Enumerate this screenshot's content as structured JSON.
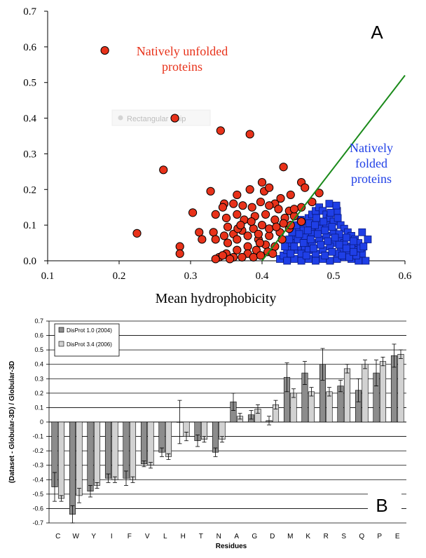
{
  "colors": {
    "red": "#e8321a",
    "blue": "#1f3fe6",
    "green": "#1a8a1a",
    "bar_dark": "#8c8c8c",
    "bar_light": "#d2d2d2"
  },
  "chart_data": [
    {
      "type": "scatter",
      "panel": "A",
      "xlabel": "Mean hydrophobicity",
      "ylabel": "",
      "xlim": [
        0.1,
        0.6
      ],
      "ylim": [
        0.0,
        0.7
      ],
      "xticks": [
        "0.1",
        "0.2",
        "0.3",
        "0.4",
        "0.5",
        "0.6"
      ],
      "yticks": [
        "0.0",
        "0.1",
        "0.2",
        "0.3",
        "0.4",
        "0.5",
        "0.6",
        "0.7"
      ],
      "annotations": {
        "unfolded_line1": "Natively unfolded",
        "unfolded_line2": "proteins",
        "folded_line1": "Natively",
        "folded_line2": "folded",
        "folded_line3": "proteins",
        "watermark": "Rectangular Snip"
      },
      "boundary_line": {
        "x1": 0.4,
        "y1": 0.0,
        "x2": 0.6,
        "y2": 0.52
      },
      "series": [
        {
          "name": "Natively unfolded proteins",
          "marker": "circle",
          "points": [
            [
              0.18,
              0.59
            ],
            [
              0.278,
              0.4
            ],
            [
              0.342,
              0.365
            ],
            [
              0.383,
              0.355
            ],
            [
              0.262,
              0.255
            ],
            [
              0.43,
              0.263
            ],
            [
              0.225,
              0.077
            ],
            [
              0.285,
              0.04
            ],
            [
              0.285,
              0.02
            ],
            [
              0.312,
              0.08
            ],
            [
              0.316,
              0.06
            ],
            [
              0.303,
              0.135
            ],
            [
              0.328,
              0.195
            ],
            [
              0.347,
              0.16
            ],
            [
              0.365,
              0.185
            ],
            [
              0.383,
              0.2
            ],
            [
              0.4,
              0.22
            ],
            [
              0.403,
              0.195
            ],
            [
              0.41,
              0.205
            ],
            [
              0.418,
              0.16
            ],
            [
              0.426,
              0.175
            ],
            [
              0.44,
              0.185
            ],
            [
              0.455,
              0.22
            ],
            [
              0.46,
              0.205
            ],
            [
              0.48,
              0.19
            ],
            [
              0.47,
              0.165
            ],
            [
              0.455,
              0.15
            ],
            [
              0.438,
              0.14
            ],
            [
              0.423,
              0.145
            ],
            [
              0.41,
              0.155
            ],
            [
              0.398,
              0.165
            ],
            [
              0.386,
              0.15
            ],
            [
              0.373,
              0.155
            ],
            [
              0.36,
              0.16
            ],
            [
              0.345,
              0.15
            ],
            [
              0.335,
              0.13
            ],
            [
              0.35,
              0.12
            ],
            [
              0.365,
              0.13
            ],
            [
              0.375,
              0.115
            ],
            [
              0.39,
              0.125
            ],
            [
              0.405,
              0.13
            ],
            [
              0.418,
              0.115
            ],
            [
              0.432,
              0.12
            ],
            [
              0.445,
              0.125
            ],
            [
              0.455,
              0.11
            ],
            [
              0.4,
              0.1
            ],
            [
              0.388,
              0.09
            ],
            [
              0.372,
              0.085
            ],
            [
              0.36,
              0.075
            ],
            [
              0.347,
              0.07
            ],
            [
              0.332,
              0.08
            ],
            [
              0.335,
              0.06
            ],
            [
              0.352,
              0.05
            ],
            [
              0.365,
              0.06
            ],
            [
              0.38,
              0.04
            ],
            [
              0.395,
              0.06
            ],
            [
              0.41,
              0.07
            ],
            [
              0.425,
              0.08
            ],
            [
              0.438,
              0.09
            ],
            [
              0.405,
              0.045
            ],
            [
              0.392,
              0.03
            ],
            [
              0.38,
              0.02
            ],
            [
              0.365,
              0.03
            ],
            [
              0.35,
              0.02
            ],
            [
              0.34,
              0.01
            ],
            [
              0.345,
              0.015
            ],
            [
              0.36,
              0.01
            ],
            [
              0.372,
              0.01
            ],
            [
              0.388,
              0.01
            ],
            [
              0.398,
              0.015
            ],
            [
              0.408,
              0.025
            ],
            [
              0.418,
              0.04
            ],
            [
              0.428,
              0.06
            ],
            [
              0.395,
              0.075
            ],
            [
              0.41,
              0.09
            ],
            [
              0.38,
              0.07
            ],
            [
              0.366,
              0.09
            ],
            [
              0.352,
              0.095
            ],
            [
              0.42,
              0.095
            ],
            [
              0.44,
              0.1
            ],
            [
              0.37,
              0.1
            ],
            [
              0.385,
              0.11
            ],
            [
              0.397,
              0.05
            ],
            [
              0.415,
              0.02
            ],
            [
              0.355,
              0.005
            ],
            [
              0.43,
              0.105
            ],
            [
              0.445,
              0.145
            ],
            [
              0.335,
              0.005
            ]
          ]
        },
        {
          "name": "Natively folded proteins",
          "marker": "square",
          "points": [
            [
              0.425,
              0.005
            ],
            [
              0.43,
              0.015
            ],
            [
              0.435,
              0.03
            ],
            [
              0.44,
              0.05
            ],
            [
              0.445,
              0.07
            ],
            [
              0.45,
              0.09
            ],
            [
              0.455,
              0.1
            ],
            [
              0.46,
              0.11
            ],
            [
              0.465,
              0.12
            ],
            [
              0.47,
              0.13
            ],
            [
              0.475,
              0.14
            ],
            [
              0.48,
              0.15
            ],
            [
              0.485,
              0.14
            ],
            [
              0.49,
              0.13
            ],
            [
              0.495,
              0.12
            ],
            [
              0.5,
              0.11
            ],
            [
              0.505,
              0.14
            ],
            [
              0.51,
              0.1
            ],
            [
              0.515,
              0.09
            ],
            [
              0.52,
              0.08
            ],
            [
              0.525,
              0.07
            ],
            [
              0.53,
              0.06
            ],
            [
              0.535,
              0.05
            ],
            [
              0.54,
              0.08
            ],
            [
              0.548,
              0.06
            ],
            [
              0.545,
              0.0
            ],
            [
              0.535,
              0.0
            ],
            [
              0.525,
              0.005
            ],
            [
              0.515,
              0.01
            ],
            [
              0.505,
              0.005
            ],
            [
              0.495,
              0.0
            ],
            [
              0.485,
              0.005
            ],
            [
              0.475,
              0.0
            ],
            [
              0.465,
              0.005
            ],
            [
              0.455,
              0.0
            ],
            [
              0.445,
              0.005
            ],
            [
              0.435,
              0.0
            ],
            [
              0.44,
              0.02
            ],
            [
              0.45,
              0.03
            ],
            [
              0.46,
              0.04
            ],
            [
              0.47,
              0.05
            ],
            [
              0.48,
              0.06
            ],
            [
              0.49,
              0.07
            ],
            [
              0.5,
              0.08
            ],
            [
              0.51,
              0.06
            ],
            [
              0.52,
              0.04
            ],
            [
              0.53,
              0.03
            ],
            [
              0.54,
              0.02
            ],
            [
              0.45,
              0.06
            ],
            [
              0.46,
              0.07
            ],
            [
              0.47,
              0.08
            ],
            [
              0.48,
              0.09
            ],
            [
              0.49,
              0.1
            ],
            [
              0.5,
              0.05
            ],
            [
              0.51,
              0.03
            ],
            [
              0.52,
              0.02
            ],
            [
              0.455,
              0.02
            ],
            [
              0.465,
              0.03
            ],
            [
              0.475,
              0.02
            ],
            [
              0.485,
              0.03
            ],
            [
              0.495,
              0.04
            ],
            [
              0.505,
              0.02
            ],
            [
              0.515,
              0.05
            ],
            [
              0.525,
              0.04
            ],
            [
              0.445,
              0.04
            ],
            [
              0.458,
              0.085
            ],
            [
              0.468,
              0.095
            ],
            [
              0.478,
              0.11
            ],
            [
              0.488,
              0.085
            ],
            [
              0.498,
              0.095
            ],
            [
              0.508,
              0.075
            ],
            [
              0.518,
              0.065
            ],
            [
              0.528,
              0.055
            ],
            [
              0.538,
              0.035
            ],
            [
              0.432,
              0.04
            ],
            [
              0.442,
              0.08
            ],
            [
              0.452,
              0.075
            ],
            [
              0.462,
              0.015
            ],
            [
              0.472,
              0.035
            ],
            [
              0.482,
              0.045
            ],
            [
              0.492,
              0.055
            ],
            [
              0.502,
              0.065
            ],
            [
              0.512,
              0.015
            ],
            [
              0.522,
              0.01
            ],
            [
              0.532,
              0.015
            ],
            [
              0.542,
              0.04
            ],
            [
              0.438,
              0.06
            ],
            [
              0.448,
              0.1
            ],
            [
              0.458,
              0.05
            ],
            [
              0.468,
              0.06
            ],
            [
              0.478,
              0.075
            ],
            [
              0.488,
              0.015
            ],
            [
              0.498,
              0.025
            ],
            [
              0.508,
              0.045
            ],
            [
              0.518,
              0.035
            ],
            [
              0.528,
              0.025
            ],
            [
              0.466,
              0.105
            ],
            [
              0.476,
              0.12
            ],
            [
              0.486,
              0.11
            ],
            [
              0.496,
              0.135
            ],
            [
              0.506,
              0.12
            ],
            [
              0.494,
              0.16
            ],
            [
              0.504,
              0.155
            ],
            [
              0.464,
              0.085
            ],
            [
              0.454,
              0.115
            ],
            [
              0.474,
              0.1
            ]
          ]
        }
      ]
    },
    {
      "type": "bar",
      "panel": "B",
      "ylabel": "(Dataset - Globular-3D) / Globular-3D",
      "xlabel": "Residues",
      "ylim": [
        -0.7,
        0.7
      ],
      "yticks": [
        "0.7",
        "0.6",
        "0.5",
        "0.4",
        "0.3",
        "0.2",
        "0.1",
        "0",
        "-0.1",
        "-0.2",
        "-0.3",
        "-0.4",
        "-0.5",
        "-0.6",
        "-0.7"
      ],
      "categories": [
        "C",
        "W",
        "Y",
        "I",
        "F",
        "V",
        "L",
        "H",
        "T",
        "N",
        "A",
        "G",
        "D",
        "M",
        "K",
        "R",
        "S",
        "Q",
        "P",
        "E"
      ],
      "series": [
        {
          "name": "DisProt 1.0 (2004)",
          "values": [
            -0.45,
            -0.64,
            -0.48,
            -0.39,
            -0.39,
            -0.29,
            -0.21,
            0.0,
            -0.13,
            -0.21,
            0.14,
            0.05,
            0.01,
            0.31,
            0.34,
            0.4,
            0.25,
            0.22,
            0.34,
            0.46
          ],
          "errors": [
            0.1,
            0.06,
            0.04,
            0.03,
            0.05,
            0.02,
            0.03,
            0.15,
            0.04,
            0.03,
            0.06,
            0.03,
            0.03,
            0.1,
            0.08,
            0.11,
            0.04,
            0.08,
            0.09,
            0.08
          ]
        },
        {
          "name": "DisProt 3.4 (2006)",
          "values": [
            -0.53,
            -0.51,
            -0.44,
            -0.4,
            -0.4,
            -0.3,
            -0.24,
            -0.1,
            -0.12,
            -0.12,
            0.04,
            0.09,
            0.12,
            0.2,
            0.21,
            0.21,
            0.37,
            0.4,
            0.42,
            0.47
          ],
          "errors": [
            0.02,
            0.05,
            0.02,
            0.02,
            0.02,
            0.02,
            0.02,
            0.03,
            0.02,
            0.02,
            0.02,
            0.03,
            0.03,
            0.03,
            0.03,
            0.03,
            0.03,
            0.03,
            0.03,
            0.03
          ]
        }
      ],
      "legend": [
        "DisProt 1.0 (2004)",
        "DisProt 3.4 (2006)"
      ],
      "panel_label": "B"
    }
  ],
  "panel_labels": {
    "a": "A",
    "b": "B"
  }
}
